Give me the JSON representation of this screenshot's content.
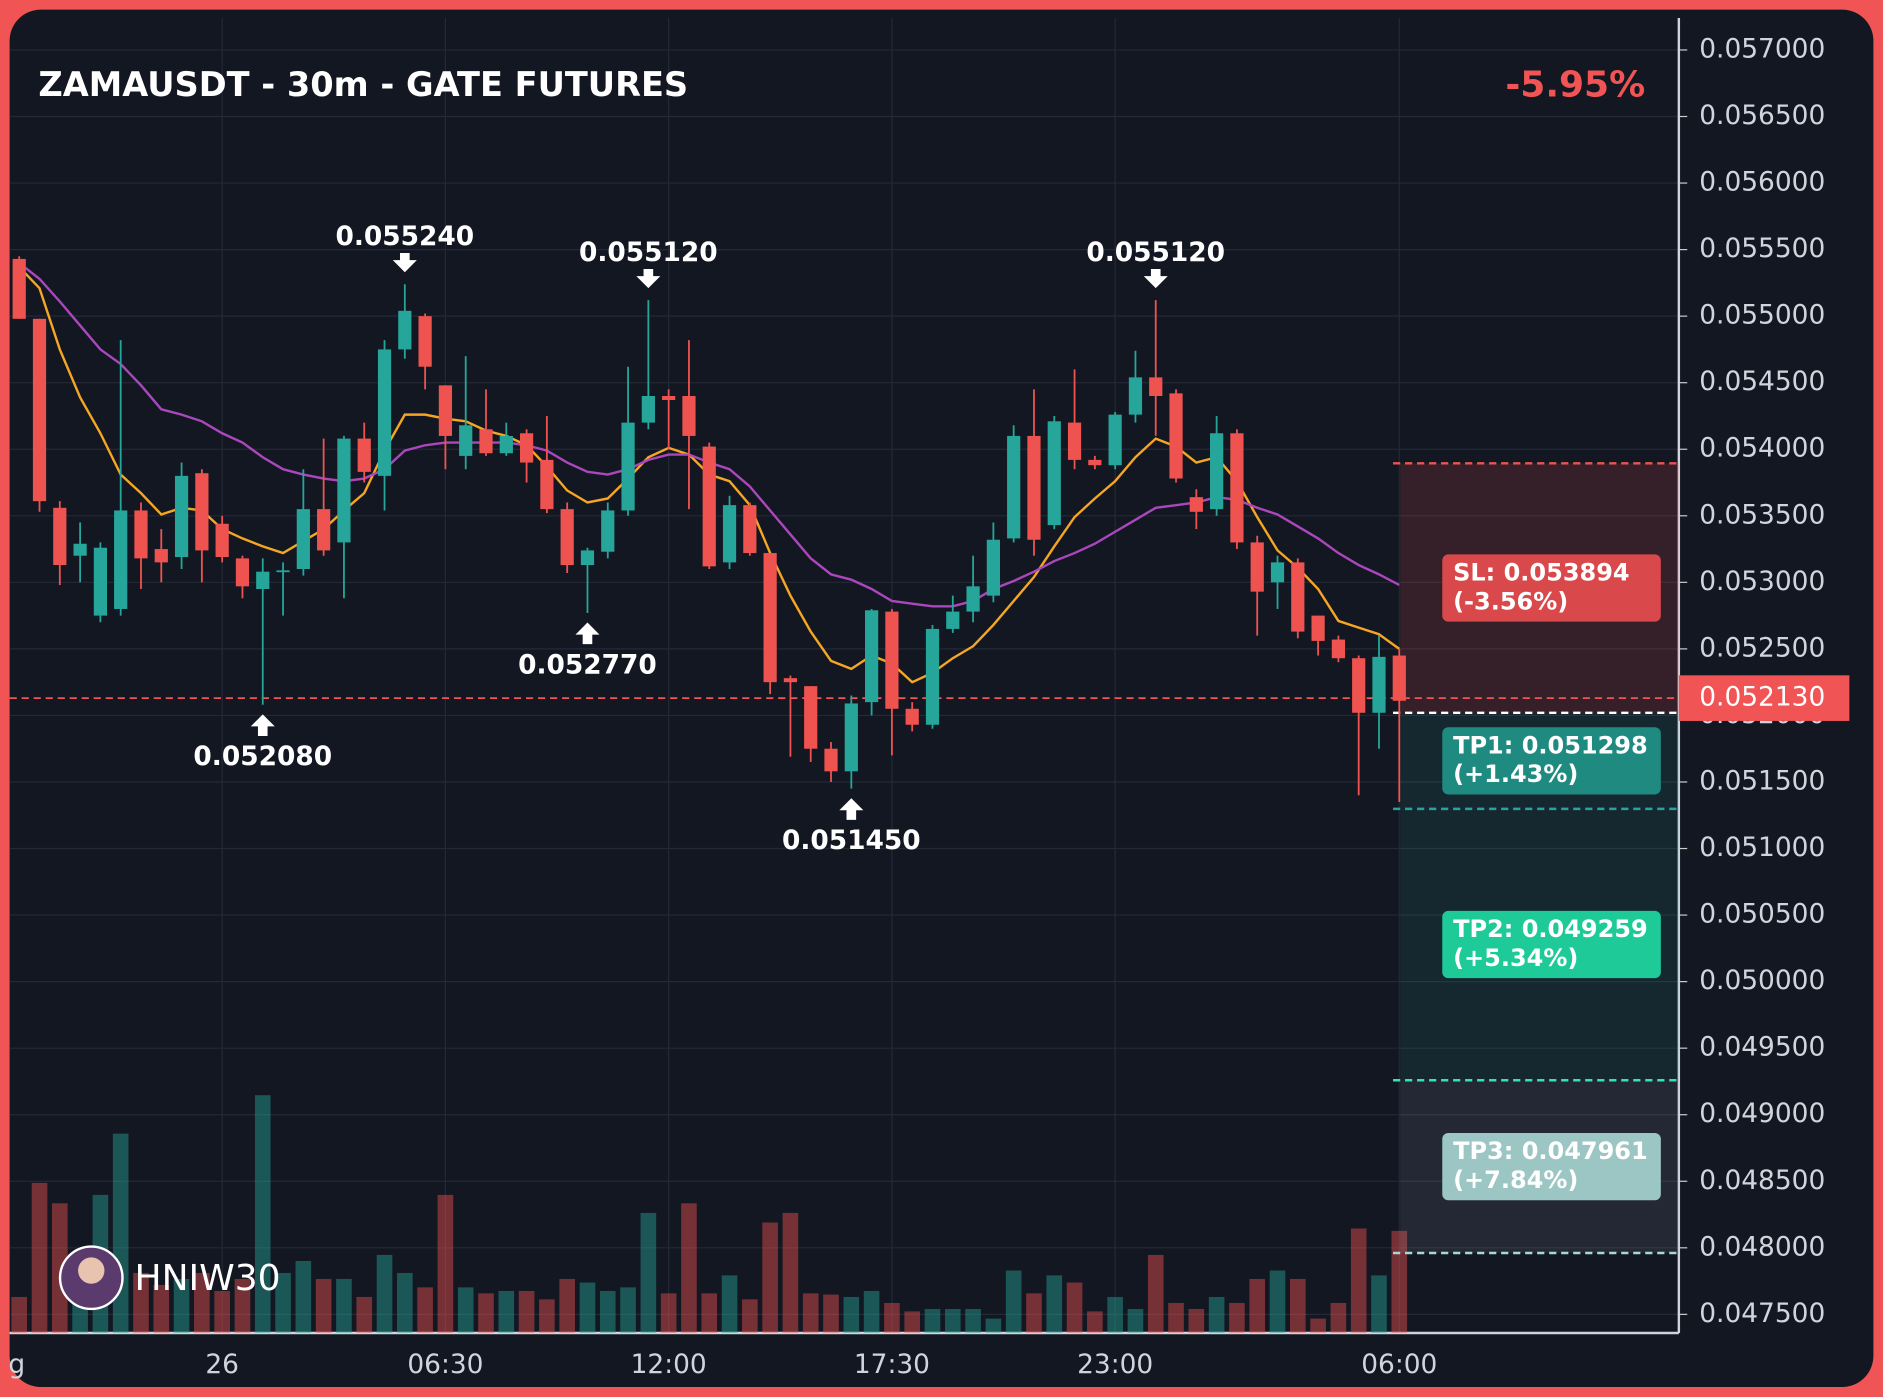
{
  "chart_data": {
    "type": "candlestick",
    "title": "ZAMAUSDT - 30m - GATE FUTURES",
    "change": "-5.95%",
    "watermark": "HNIW30",
    "categories": [
      "g",
      null,
      null,
      null,
      null,
      null,
      null,
      null,
      null,
      null,
      "26",
      null,
      null,
      null,
      null,
      null,
      null,
      null,
      null,
      null,
      null,
      "06:30",
      null,
      null,
      null,
      null,
      null,
      null,
      null,
      null,
      null,
      null,
      "12:00",
      null,
      null,
      null,
      null,
      null,
      null,
      null,
      null,
      null,
      null,
      "17:30",
      null,
      null,
      null,
      null,
      null,
      null,
      null,
      null,
      null,
      null,
      "23:00",
      null,
      null,
      null,
      null,
      null,
      null,
      null,
      null,
      null,
      null,
      null,
      null,
      null,
      "06:00"
    ],
    "open": [
      0.05543,
      0.05498,
      0.05356,
      0.0532,
      0.05275,
      0.0528,
      0.05354,
      0.05325,
      0.05319,
      0.05382,
      0.05344,
      0.05318,
      0.05295,
      0.05308,
      0.0531,
      0.05355,
      0.0533,
      0.05408,
      0.0538,
      0.05475,
      0.055,
      0.05448,
      0.05395,
      0.05415,
      0.05397,
      0.05412,
      0.05392,
      0.05355,
      0.05313,
      0.05323,
      0.05354,
      0.0542,
      0.0544,
      0.0544,
      0.05402,
      0.05315,
      0.05358,
      0.05322,
      0.05228,
      0.05222,
      0.05175,
      0.05158,
      0.0521,
      0.05278,
      0.05205,
      0.05193,
      0.05265,
      0.05278,
      0.0529,
      0.05333,
      0.0541,
      0.05343,
      0.0542,
      0.05392,
      0.05388,
      0.05426,
      0.05454,
      0.05442,
      0.05364,
      0.05355,
      0.05412,
      0.0533,
      0.053,
      0.05315,
      0.05275,
      0.05257,
      0.05243,
      0.05202,
      0.05245
    ],
    "high": [
      0.05545,
      0.05498,
      0.05361,
      0.05345,
      0.0533,
      0.05482,
      0.0536,
      0.0534,
      0.0539,
      0.05385,
      0.0535,
      0.0532,
      0.05318,
      0.05315,
      0.05385,
      0.05408,
      0.0541,
      0.0542,
      0.05482,
      0.05524,
      0.05502,
      0.05448,
      0.0547,
      0.05445,
      0.0542,
      0.05415,
      0.05425,
      0.0536,
      0.05326,
      0.0536,
      0.05462,
      0.05512,
      0.05445,
      0.05482,
      0.05405,
      0.05365,
      0.0536,
      0.05322,
      0.0523,
      0.05222,
      0.0518,
      0.05215,
      0.0528,
      0.0528,
      0.0521,
      0.05268,
      0.0529,
      0.0532,
      0.05345,
      0.05418,
      0.05445,
      0.05425,
      0.0546,
      0.05395,
      0.05428,
      0.05474,
      0.05512,
      0.05445,
      0.0537,
      0.05425,
      0.05415,
      0.05335,
      0.0532,
      0.05318,
      0.05275,
      0.0526,
      0.05245,
      0.0526,
      0.0525
    ],
    "low": [
      0.05498,
      0.05353,
      0.05298,
      0.053,
      0.0527,
      0.05275,
      0.05295,
      0.053,
      0.0531,
      0.053,
      0.05315,
      0.05288,
      0.05208,
      0.05275,
      0.05305,
      0.0532,
      0.05288,
      0.05375,
      0.05354,
      0.05468,
      0.05445,
      0.05385,
      0.05385,
      0.05395,
      0.05395,
      0.05375,
      0.05352,
      0.05307,
      0.05277,
      0.05318,
      0.0535,
      0.05415,
      0.054,
      0.05355,
      0.0531,
      0.0531,
      0.0532,
      0.05216,
      0.05169,
      0.05165,
      0.0515,
      0.05145,
      0.052,
      0.0517,
      0.05188,
      0.0519,
      0.05262,
      0.0527,
      0.05285,
      0.0533,
      0.0532,
      0.0534,
      0.05385,
      0.05385,
      0.05385,
      0.0542,
      0.0541,
      0.05375,
      0.0534,
      0.0535,
      0.05325,
      0.0526,
      0.0528,
      0.05258,
      0.05245,
      0.0524,
      0.0514,
      0.05175,
      0.05135
    ],
    "close": [
      0.05498,
      0.05361,
      0.05313,
      0.05329,
      0.05326,
      0.05354,
      0.05318,
      0.05315,
      0.0538,
      0.05324,
      0.05319,
      0.05297,
      0.05308,
      0.05309,
      0.05355,
      0.05324,
      0.05408,
      0.05383,
      0.05475,
      0.05504,
      0.05462,
      0.0541,
      0.05418,
      0.05397,
      0.0541,
      0.0539,
      0.05355,
      0.05313,
      0.05324,
      0.05354,
      0.0542,
      0.0544,
      0.05437,
      0.0541,
      0.05312,
      0.05358,
      0.05322,
      0.05225,
      0.05225,
      0.05175,
      0.05158,
      0.05209,
      0.05279,
      0.05205,
      0.05193,
      0.05265,
      0.05278,
      0.05297,
      0.05332,
      0.0541,
      0.05332,
      0.05421,
      0.05392,
      0.05388,
      0.05426,
      0.05454,
      0.0544,
      0.05378,
      0.05353,
      0.05412,
      0.0533,
      0.05293,
      0.05315,
      0.05263,
      0.05256,
      0.05243,
      0.05202,
      0.05244,
      0.05211
    ],
    "volume": [
      30,
      125,
      108,
      60,
      115,
      166,
      50,
      40,
      45,
      50,
      35,
      45,
      198,
      50,
      60,
      45,
      45,
      30,
      65,
      50,
      38,
      115,
      38,
      33,
      35,
      35,
      28,
      45,
      42,
      35,
      38,
      100,
      33,
      108,
      33,
      48,
      28,
      92,
      100,
      33,
      32,
      30,
      35,
      25,
      18,
      20,
      20,
      20,
      12,
      52,
      33,
      48,
      42,
      18,
      30,
      20,
      65,
      25,
      20,
      30,
      25,
      45,
      52,
      45,
      12,
      25,
      87,
      48,
      85
    ],
    "up_color": "#26a69a",
    "down_color": "#ef5350",
    "indicators": [
      {
        "color": "#f5a623",
        "values": [
          0.05537,
          0.05521,
          0.05475,
          0.05439,
          0.05412,
          0.05381,
          0.05367,
          0.05351,
          0.05356,
          0.05354,
          0.0534,
          0.05333,
          0.05327,
          0.05322,
          0.05331,
          0.0534,
          0.05354,
          0.05367,
          0.05399,
          0.05426,
          0.05426,
          0.05423,
          0.05421,
          0.05414,
          0.0541,
          0.05403,
          0.05387,
          0.05369,
          0.0536,
          0.05363,
          0.05378,
          0.05394,
          0.05401,
          0.05396,
          0.05381,
          0.05376,
          0.05358,
          0.05322,
          0.0529,
          0.05263,
          0.05241,
          0.05235,
          0.05245,
          0.05239,
          0.05225,
          0.05232,
          0.05243,
          0.05252,
          0.05268,
          0.05286,
          0.05304,
          0.05327,
          0.05349,
          0.05363,
          0.05376,
          0.05394,
          0.05408,
          0.05402,
          0.0539,
          0.05394,
          0.05376,
          0.05349,
          0.05324,
          0.05311,
          0.05295,
          0.05271,
          0.05266,
          0.05261,
          0.0525
        ]
      },
      {
        "color": "#ab47bc",
        "values": [
          0.0554,
          0.05528,
          0.05511,
          0.05493,
          0.05475,
          0.05464,
          0.05448,
          0.0543,
          0.05426,
          0.05421,
          0.05412,
          0.05405,
          0.05394,
          0.05385,
          0.05381,
          0.05378,
          0.05376,
          0.05378,
          0.05385,
          0.05399,
          0.05403,
          0.05405,
          0.05405,
          0.05405,
          0.05405,
          0.05403,
          0.05399,
          0.0539,
          0.05383,
          0.05381,
          0.05385,
          0.05392,
          0.05396,
          0.05396,
          0.0539,
          0.05385,
          0.05372,
          0.05354,
          0.05336,
          0.05318,
          0.05306,
          0.05302,
          0.05295,
          0.05286,
          0.05284,
          0.05282,
          0.05282,
          0.05286,
          0.05295,
          0.05301,
          0.05308,
          0.05316,
          0.05322,
          0.05329,
          0.05338,
          0.05347,
          0.05356,
          0.05358,
          0.0536,
          0.05364,
          0.05362,
          0.05356,
          0.05351,
          0.05342,
          0.05333,
          0.05322,
          0.05313,
          0.05306,
          0.05298
        ]
      }
    ],
    "annotations": [
      {
        "index": 19,
        "kind": "high",
        "value": 0.05524,
        "label": "0.055240"
      },
      {
        "index": 31,
        "kind": "high",
        "value": 0.05512,
        "label": "0.055120"
      },
      {
        "index": 56,
        "kind": "high",
        "value": 0.05512,
        "label": "0.055120"
      },
      {
        "index": 12,
        "kind": "low",
        "value": 0.05208,
        "label": "0.052080"
      },
      {
        "index": 28,
        "kind": "low",
        "value": 0.05277,
        "label": "0.052770"
      },
      {
        "index": 41,
        "kind": "low",
        "value": 0.05145,
        "label": "0.051450"
      }
    ],
    "current_price": {
      "value": 0.05213,
      "label": "0.052130"
    },
    "entry": 0.05202,
    "levels": [
      {
        "label": "SL: 0.053894",
        "change": "(-3.56%)",
        "value": 0.053894,
        "color": "#ef5350",
        "box_color": "#d9484a"
      },
      {
        "label": "TP1: 0.051298",
        "change": "(+1.43%)",
        "value": 0.051298,
        "color": "#26a69a",
        "box_color": "#1f8a80"
      },
      {
        "label": "TP2: 0.049259",
        "change": "(+5.34%)",
        "value": 0.049259,
        "color": "#2ee6b0",
        "box_color": "#1ecb98"
      },
      {
        "label": "TP3: 0.047961",
        "change": "(+7.84%)",
        "value": 0.047961,
        "color": "#a8d8d4",
        "box_color": "#9cc6c3"
      }
    ],
    "ylim": [
      0.04736,
      0.05724
    ],
    "yticks": [
      {
        "value": 0.0475,
        "label": "0.047500"
      },
      {
        "value": 0.048,
        "label": "0.048000"
      },
      {
        "value": 0.0485,
        "label": "0.048500"
      },
      {
        "value": 0.049,
        "label": "0.049000"
      },
      {
        "value": 0.0495,
        "label": "0.049500"
      },
      {
        "value": 0.05,
        "label": "0.050000"
      },
      {
        "value": 0.0505,
        "label": "0.050500"
      },
      {
        "value": 0.051,
        "label": "0.051000"
      },
      {
        "value": 0.0515,
        "label": "0.051500"
      },
      {
        "value": 0.052,
        "label": "0.052000"
      },
      {
        "value": 0.0525,
        "label": "0.052500"
      },
      {
        "value": 0.053,
        "label": "0.053000"
      },
      {
        "value": 0.0535,
        "label": "0.053500"
      },
      {
        "value": 0.054,
        "label": "0.054000"
      },
      {
        "value": 0.0545,
        "label": "0.054500"
      },
      {
        "value": 0.055,
        "label": "0.055000"
      },
      {
        "value": 0.0555,
        "label": "0.055500"
      },
      {
        "value": 0.056,
        "label": "0.056000"
      },
      {
        "value": 0.0565,
        "label": "0.056500"
      },
      {
        "value": 0.057,
        "label": "0.057000"
      }
    ],
    "grid": true
  }
}
